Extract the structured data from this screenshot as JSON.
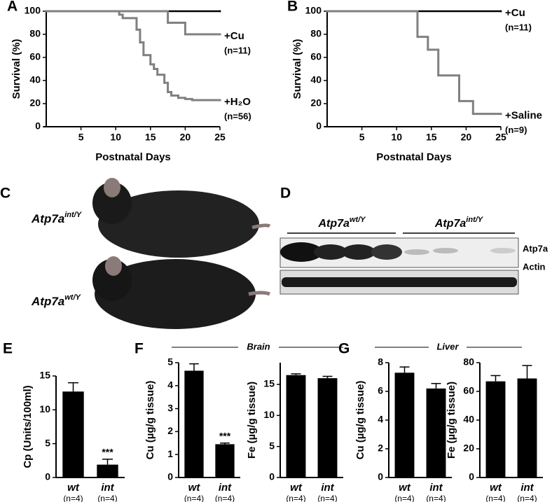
{
  "panels": [
    "A",
    "B",
    "C",
    "D",
    "E",
    "F",
    "G"
  ],
  "chart_data": [
    {
      "type": "survival",
      "xlabel": "Postnatal Days",
      "ylabel": "Survival (%)",
      "xlim": [
        0,
        25
      ],
      "ylim": [
        0,
        100
      ],
      "xticks": [
        5,
        10,
        15,
        20,
        25
      ],
      "yticks": [
        0,
        20,
        40,
        60,
        80,
        100
      ],
      "series": [
        {
          "color": "#000000",
          "x": [
            0,
            25
          ],
          "values": [
            100,
            100
          ]
        },
        {
          "name": "+Cu",
          "n": "(n=11)",
          "color": "#808080",
          "x": [
            0,
            17.5,
            20,
            25
          ],
          "values": [
            100,
            90,
            80,
            80
          ]
        },
        {
          "name": "+H₂O",
          "n": "(n=56)",
          "color": "#808080",
          "x": [
            0,
            10.5,
            11,
            13,
            13.5,
            14,
            15,
            15.5,
            16,
            17,
            17.5,
            18,
            19,
            20,
            21,
            25
          ],
          "values": [
            100,
            97,
            94,
            84,
            73,
            62,
            54,
            50,
            45,
            38,
            30,
            27,
            25,
            24,
            23,
            23
          ]
        }
      ]
    },
    {
      "type": "survival",
      "xlabel": "Postnatal Days",
      "ylabel": "Survival (%)",
      "xlim": [
        0,
        25
      ],
      "ylim": [
        0,
        100
      ],
      "xticks": [
        5,
        10,
        15,
        20,
        25
      ],
      "yticks": [
        0,
        20,
        40,
        60,
        80,
        100
      ],
      "series": [
        {
          "name": "+Cu",
          "n": "(n=11)",
          "color": "#000000",
          "x": [
            0,
            25
          ],
          "values": [
            100,
            100
          ]
        },
        {
          "name": "+Saline",
          "n": "(n=9)",
          "color": "#808080",
          "x": [
            0,
            13,
            14.5,
            16,
            19,
            21,
            25
          ],
          "values": [
            100,
            77.8,
            66.7,
            44.4,
            22.2,
            11.1,
            11.1
          ]
        }
      ]
    },
    {
      "type": "bar",
      "ylabel": "Cp (Units/100ml)",
      "categories": [
        "wt",
        "int"
      ],
      "n_labels": [
        "(n=4)",
        "(n=4)"
      ],
      "values": [
        12.7,
        1.9
      ],
      "errors": [
        1.3,
        0.8
      ],
      "significance": [
        null,
        "***"
      ],
      "color": "#000000",
      "ylim": [
        0,
        15
      ],
      "yticks": [
        0,
        5,
        10,
        15
      ]
    },
    {
      "type": "bar",
      "ylabel": "Cu (µg/g tissue)",
      "categories": [
        "wt",
        "int"
      ],
      "n_labels": [
        "(n=4)",
        "(n=4)"
      ],
      "values": [
        4.65,
        1.45
      ],
      "errors": [
        0.3,
        0.05
      ],
      "significance": [
        null,
        "***"
      ],
      "color": "#000000",
      "ylim": [
        0,
        5
      ],
      "yticks": [
        0,
        1,
        2,
        3,
        4,
        5
      ]
    },
    {
      "type": "bar",
      "ylabel": "Fe (µg/g tissue)",
      "categories": [
        "wt",
        "int"
      ],
      "n_labels": [
        "(n=4)",
        "(n=4)"
      ],
      "values": [
        16.5,
        16
      ],
      "errors": [
        0.2,
        0.3
      ],
      "significance": [
        null,
        null
      ],
      "color": "#000000",
      "ylim": [
        0,
        18.5
      ],
      "yticks": [
        0,
        5,
        10,
        15
      ]
    },
    {
      "type": "bar",
      "ylabel": "Cu (µg/g tissue)",
      "categories": [
        "wt",
        "int"
      ],
      "n_labels": [
        "(n=4)",
        "(n=4)"
      ],
      "values": [
        7.3,
        6.2
      ],
      "errors": [
        0.4,
        0.35
      ],
      "significance": [
        null,
        null
      ],
      "color": "#000000",
      "ylim": [
        0,
        8
      ],
      "yticks": [
        0,
        2,
        4,
        6,
        8
      ]
    },
    {
      "type": "bar",
      "ylabel": "Fe (µg/g tissue)",
      "categories": [
        "wt",
        "int"
      ],
      "n_labels": [
        "(n=4)",
        "(n=4)"
      ],
      "values": [
        67,
        69
      ],
      "errors": [
        4,
        9
      ],
      "significance": [
        null,
        null
      ],
      "color": "#000000",
      "ylim": [
        0,
        80
      ],
      "yticks": [
        0,
        20,
        40,
        60,
        80
      ]
    }
  ],
  "photo": {
    "top": {
      "gene": "Atp7a",
      "sup": "int/Y"
    },
    "bottom": {
      "gene": "Atp7a",
      "sup": "wt/Y"
    }
  },
  "blot": {
    "groups": [
      {
        "gene": "Atp7a",
        "sup": "wt/Y"
      },
      {
        "gene": "Atp7a",
        "sup": "int/Y"
      }
    ],
    "bands": [
      "Atp7a",
      "Actin"
    ]
  },
  "tissues": [
    "Brain",
    "Liver"
  ]
}
